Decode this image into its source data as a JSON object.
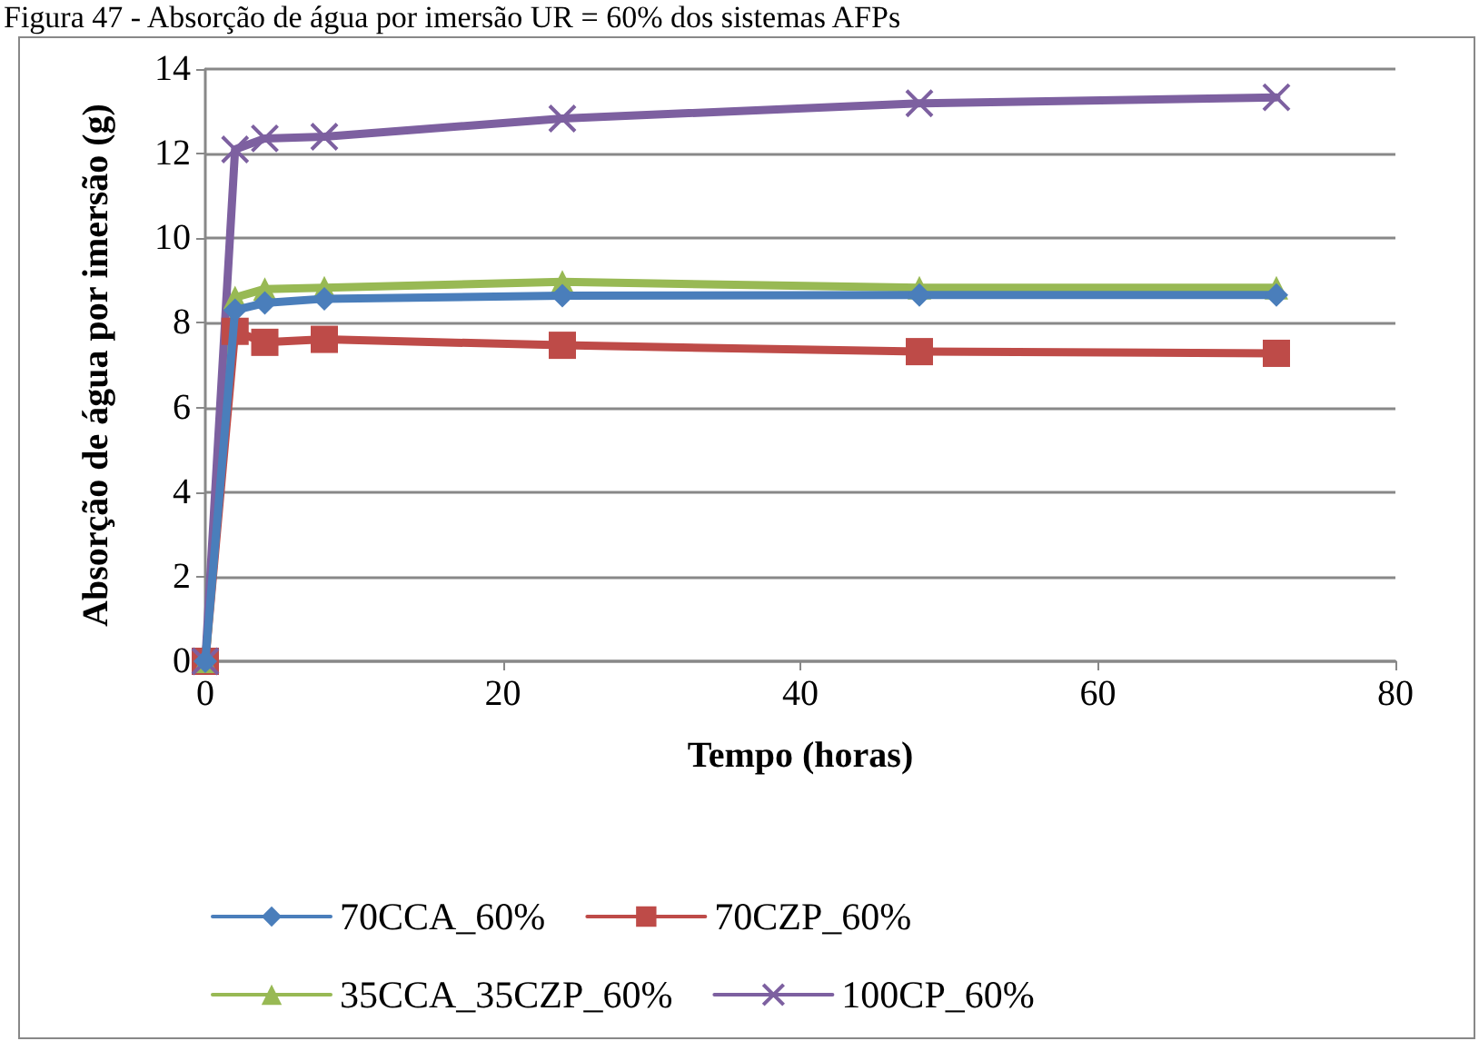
{
  "chart_data": {
    "type": "line",
    "title": "Figura 47 - Absorção de água por imersão UR = 60% dos sistemas AFPs",
    "xlabel": "Tempo (horas)",
    "ylabel": "Absorção de água por imersão (g)",
    "x": [
      0,
      2,
      4,
      8,
      24,
      48,
      72
    ],
    "series": [
      {
        "name": "70CCA_60%",
        "color": "#4a7ebb",
        "marker": "diamond",
        "values": [
          0,
          8.3,
          8.47,
          8.57,
          8.64,
          8.66,
          8.66
        ]
      },
      {
        "name": "70CZP_60%",
        "color": "#be4b48",
        "marker": "square",
        "values": [
          0,
          7.8,
          7.54,
          7.61,
          7.47,
          7.32,
          7.28
        ]
      },
      {
        "name": "35CCA_35CZP_60%",
        "color": "#98b954",
        "marker": "triangle",
        "values": [
          0,
          8.6,
          8.8,
          8.83,
          8.97,
          8.83,
          8.83
        ]
      },
      {
        "name": "100CP_60%",
        "color": "#7d60a0",
        "marker": "cross",
        "values": [
          0,
          12.1,
          12.36,
          12.4,
          12.83,
          13.19,
          13.33
        ]
      }
    ],
    "xlim": [
      0,
      80
    ],
    "xticks": [
      0,
      20,
      40,
      60,
      80
    ],
    "ylim": [
      0,
      14
    ],
    "yticks": [
      0,
      2,
      4,
      6,
      8,
      10,
      12,
      14
    ],
    "grid": "y",
    "legend": "bottom",
    "line_style": "solid"
  }
}
